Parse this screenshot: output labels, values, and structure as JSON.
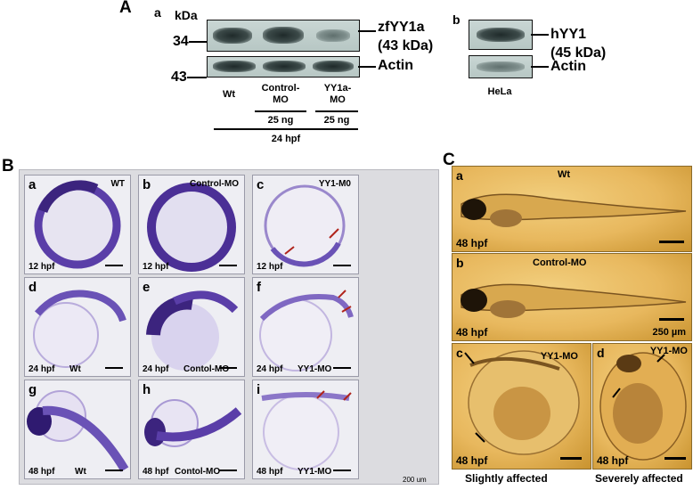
{
  "panel_a": {
    "letter": "A",
    "sub_a": {
      "letter": "a",
      "unit_label": "kDa",
      "marker_top": "34",
      "marker_bottom": "43",
      "band_top_label": "zfYY1a",
      "band_top_size": "(43 kDa)",
      "band_bottom_label": "Actin",
      "lane_labels": [
        "Wt",
        "Control-\nMO",
        "YY1a-\nMO"
      ],
      "dose_labels": [
        "25 ng",
        "25 ng"
      ],
      "timepoint": "24 hpf"
    },
    "sub_b": {
      "letter": "b",
      "band_top_label": "hYY1",
      "band_top_size": "(45 kDa)",
      "band_bottom_label": "Actin",
      "cell_line": "HeLa"
    }
  },
  "panel_b": {
    "letter": "B",
    "tiles": [
      {
        "letter": "a",
        "tag": "WT",
        "stage": "12 hpf",
        "stage_text": "12 hpf"
      },
      {
        "letter": "b",
        "tag": "Control-MO",
        "stage": "12 hpf"
      },
      {
        "letter": "c",
        "tag": "YY1-M0",
        "stage": "12 hpf"
      },
      {
        "letter": "d",
        "tag": "Wt",
        "stage": "24 hpf"
      },
      {
        "letter": "e",
        "tag": "Contol-MO",
        "stage": "24 hpf"
      },
      {
        "letter": "f",
        "tag": "YY1-MO",
        "stage": "24 hpf"
      },
      {
        "letter": "g",
        "tag": "Wt",
        "stage": "48 hpf"
      },
      {
        "letter": "h",
        "tag": "Contol-MO",
        "stage": "48 hpf"
      },
      {
        "letter": "i",
        "tag": "YY1-MO",
        "stage": "48 hpf"
      }
    ],
    "scale_label": "200 um"
  },
  "panel_c": {
    "letter": "C",
    "tiles": [
      {
        "letter": "a",
        "tag": "Wt",
        "stage": "48 hpf"
      },
      {
        "letter": "b",
        "tag": "Control-MO",
        "stage": "48 hpf",
        "scale": "250 µm"
      },
      {
        "letter": "c",
        "tag": "YY1-MO",
        "stage": "48 hpf",
        "caption": "Slightly affected"
      },
      {
        "letter": "d",
        "tag": "YY1-MO",
        "stage": "48 hpf",
        "caption": "Severely affected"
      }
    ]
  },
  "colors": {
    "stain_purple": "#5a3ea8",
    "arrow_red": "#b0241c",
    "embryo_amber": "#e8b85e"
  }
}
